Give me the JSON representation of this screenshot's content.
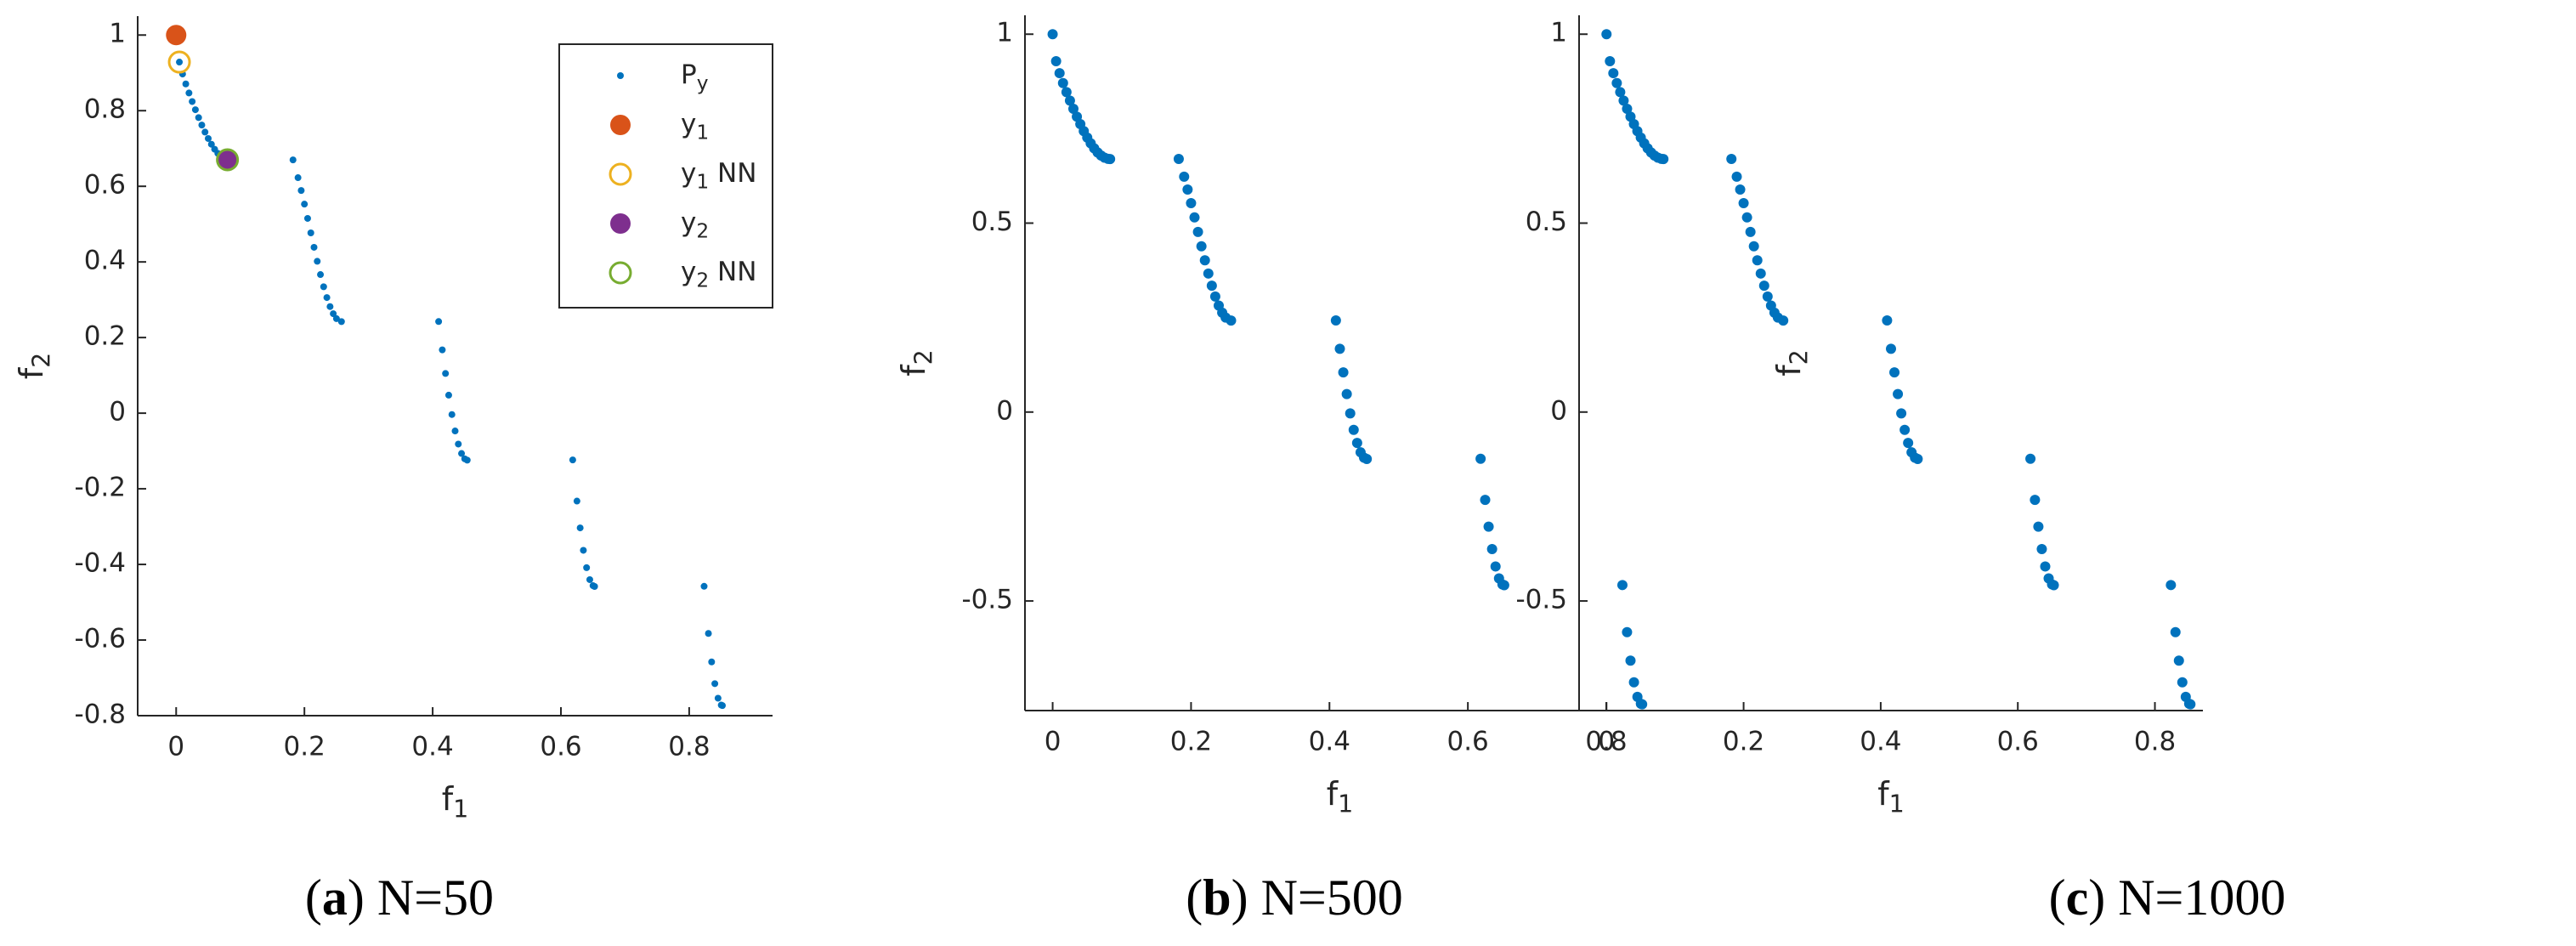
{
  "chart_data": [
    {
      "type": "scatter",
      "caption": "(a) N=50",
      "xlabel": "f1",
      "ylabel": "f2",
      "xlim": [
        -0.06,
        0.93
      ],
      "ylim": [
        -0.8,
        1.05
      ],
      "xticks": [
        0,
        0.2,
        0.4,
        0.6,
        0.8
      ],
      "yticks": [
        -0.8,
        -0.6,
        -0.4,
        -0.2,
        0,
        0.2,
        0.4,
        0.6,
        0.8,
        1
      ],
      "legend": "northeast",
      "series": [
        {
          "name": "Py",
          "color": "#0072bd",
          "marker": "dot",
          "x": [
            0,
            0.005,
            0.01,
            0.015,
            0.02,
            0.025,
            0.03,
            0.035,
            0.04,
            0.045,
            0.05,
            0.055,
            0.06,
            0.065,
            0.07,
            0.075,
            0.08,
            0.083,
            0.1822,
            0.19,
            0.195,
            0.2,
            0.205,
            0.21,
            0.215,
            0.22,
            0.225,
            0.23,
            0.235,
            0.24,
            0.245,
            0.25,
            0.2578,
            0.4093,
            0.415,
            0.42,
            0.425,
            0.43,
            0.435,
            0.44,
            0.445,
            0.45,
            0.4539,
            0.6184,
            0.625,
            0.63,
            0.635,
            0.64,
            0.645,
            0.65,
            0.6525,
            0.8233,
            0.83,
            0.835,
            0.84,
            0.845,
            0.85,
            0.8518
          ],
          "y": [
            1,
            0.9285,
            0.8969,
            0.8707,
            0.8468,
            0.8242,
            0.8025,
            0.7817,
            0.762,
            0.7434,
            0.7264,
            0.7112,
            0.698,
            0.6871,
            0.6788,
            0.6731,
            0.6702,
            0.6696,
            0.6698,
            0.6228,
            0.5889,
            0.5528,
            0.5151,
            0.4768,
            0.4387,
            0.4017,
            0.3666,
            0.3343,
            0.3058,
            0.2819,
            0.263,
            0.25,
            0.2422,
            0.2424,
            0.1674,
            0.105,
            0.0476,
            -0.0036,
            -0.0471,
            -0.0817,
            -0.1066,
            -0.1208,
            -0.1242,
            -0.1237,
            -0.2325,
            -0.3034,
            -0.3627,
            -0.4086,
            -0.4402,
            -0.4562,
            -0.4583,
            -0.4578,
            -0.5825,
            -0.6578,
            -0.7153,
            -0.7538,
            -0.772,
            -0.7733
          ]
        },
        {
          "name": "y1",
          "color": "#d95319",
          "marker": "filled",
          "x": [
            0
          ],
          "y": [
            1
          ]
        },
        {
          "name": "y1 NN",
          "color": "#edb120",
          "marker": "open",
          "x": [
            0.005
          ],
          "y": [
            0.9285
          ]
        },
        {
          "name": "y2",
          "color": "#7e2f8e",
          "marker": "filled",
          "x": [
            0.08
          ],
          "y": [
            0.6702
          ]
        },
        {
          "name": "y2 NN",
          "color": "#77ac30",
          "marker": "open",
          "x": [
            0.08
          ],
          "y": [
            0.6702
          ]
        }
      ]
    },
    {
      "type": "scatter",
      "caption": "(b) N=500",
      "xlabel": "f1",
      "ylabel": "f2",
      "xlim": [
        -0.04,
        0.87
      ],
      "ylim": [
        -0.79,
        1.05
      ],
      "xticks": [
        0,
        0.2,
        0.4,
        0.6,
        0.8
      ],
      "yticks": [
        -0.5,
        0,
        0.5,
        1
      ],
      "series": [
        {
          "color": "#0072bd",
          "marker": "dense",
          "x": [
            0,
            0.005,
            0.01,
            0.015,
            0.02,
            0.025,
            0.03,
            0.035,
            0.04,
            0.045,
            0.05,
            0.055,
            0.06,
            0.065,
            0.07,
            0.075,
            0.08,
            0.083,
            0.1822,
            0.19,
            0.195,
            0.2,
            0.205,
            0.21,
            0.215,
            0.22,
            0.225,
            0.23,
            0.235,
            0.24,
            0.245,
            0.25,
            0.2578,
            0.4093,
            0.415,
            0.42,
            0.425,
            0.43,
            0.435,
            0.44,
            0.445,
            0.45,
            0.4539,
            0.6184,
            0.625,
            0.63,
            0.635,
            0.64,
            0.645,
            0.65,
            0.6525,
            0.8233,
            0.83,
            0.835,
            0.84,
            0.845,
            0.85,
            0.8518
          ],
          "y": [
            1,
            0.9285,
            0.8969,
            0.8707,
            0.8468,
            0.8242,
            0.8025,
            0.7817,
            0.762,
            0.7434,
            0.7264,
            0.7112,
            0.698,
            0.6871,
            0.6788,
            0.6731,
            0.6702,
            0.6696,
            0.6698,
            0.6228,
            0.5889,
            0.5528,
            0.5151,
            0.4768,
            0.4387,
            0.4017,
            0.3666,
            0.3343,
            0.3058,
            0.2819,
            0.263,
            0.25,
            0.2422,
            0.2424,
            0.1674,
            0.105,
            0.0476,
            -0.0036,
            -0.0471,
            -0.0817,
            -0.1066,
            -0.1208,
            -0.1242,
            -0.1237,
            -0.2325,
            -0.3034,
            -0.3627,
            -0.4086,
            -0.4402,
            -0.4562,
            -0.4583,
            -0.4578,
            -0.5825,
            -0.6578,
            -0.7153,
            -0.7538,
            -0.772,
            -0.7733
          ]
        }
      ]
    },
    {
      "type": "scatter",
      "caption": "(c) N=1000",
      "xlabel": "f1",
      "ylabel": "f2",
      "xlim": [
        -0.04,
        0.87
      ],
      "ylim": [
        -0.79,
        1.05
      ],
      "xticks": [
        0,
        0.2,
        0.4,
        0.6,
        0.8
      ],
      "yticks": [
        -0.5,
        0,
        0.5,
        1
      ],
      "series": [
        {
          "color": "#0072bd",
          "marker": "dense",
          "x": [
            0,
            0.005,
            0.01,
            0.015,
            0.02,
            0.025,
            0.03,
            0.035,
            0.04,
            0.045,
            0.05,
            0.055,
            0.06,
            0.065,
            0.07,
            0.075,
            0.08,
            0.083,
            0.1822,
            0.19,
            0.195,
            0.2,
            0.205,
            0.21,
            0.215,
            0.22,
            0.225,
            0.23,
            0.235,
            0.24,
            0.245,
            0.25,
            0.2578,
            0.4093,
            0.415,
            0.42,
            0.425,
            0.43,
            0.435,
            0.44,
            0.445,
            0.45,
            0.4539,
            0.6184,
            0.625,
            0.63,
            0.635,
            0.64,
            0.645,
            0.65,
            0.6525,
            0.8233,
            0.83,
            0.835,
            0.84,
            0.845,
            0.85,
            0.8518
          ],
          "y": [
            1,
            0.9285,
            0.8969,
            0.8707,
            0.8468,
            0.8242,
            0.8025,
            0.7817,
            0.762,
            0.7434,
            0.7264,
            0.7112,
            0.698,
            0.6871,
            0.6788,
            0.6731,
            0.6702,
            0.6696,
            0.6698,
            0.6228,
            0.5889,
            0.5528,
            0.5151,
            0.4768,
            0.4387,
            0.4017,
            0.3666,
            0.3343,
            0.3058,
            0.2819,
            0.263,
            0.25,
            0.2422,
            0.2424,
            0.1674,
            0.105,
            0.0476,
            -0.0036,
            -0.0471,
            -0.0817,
            -0.1066,
            -0.1208,
            -0.1242,
            -0.1237,
            -0.2325,
            -0.3034,
            -0.3627,
            -0.4086,
            -0.4402,
            -0.4562,
            -0.4583,
            -0.4578,
            -0.5825,
            -0.6578,
            -0.7153,
            -0.7538,
            -0.772,
            -0.7733
          ]
        }
      ]
    }
  ]
}
